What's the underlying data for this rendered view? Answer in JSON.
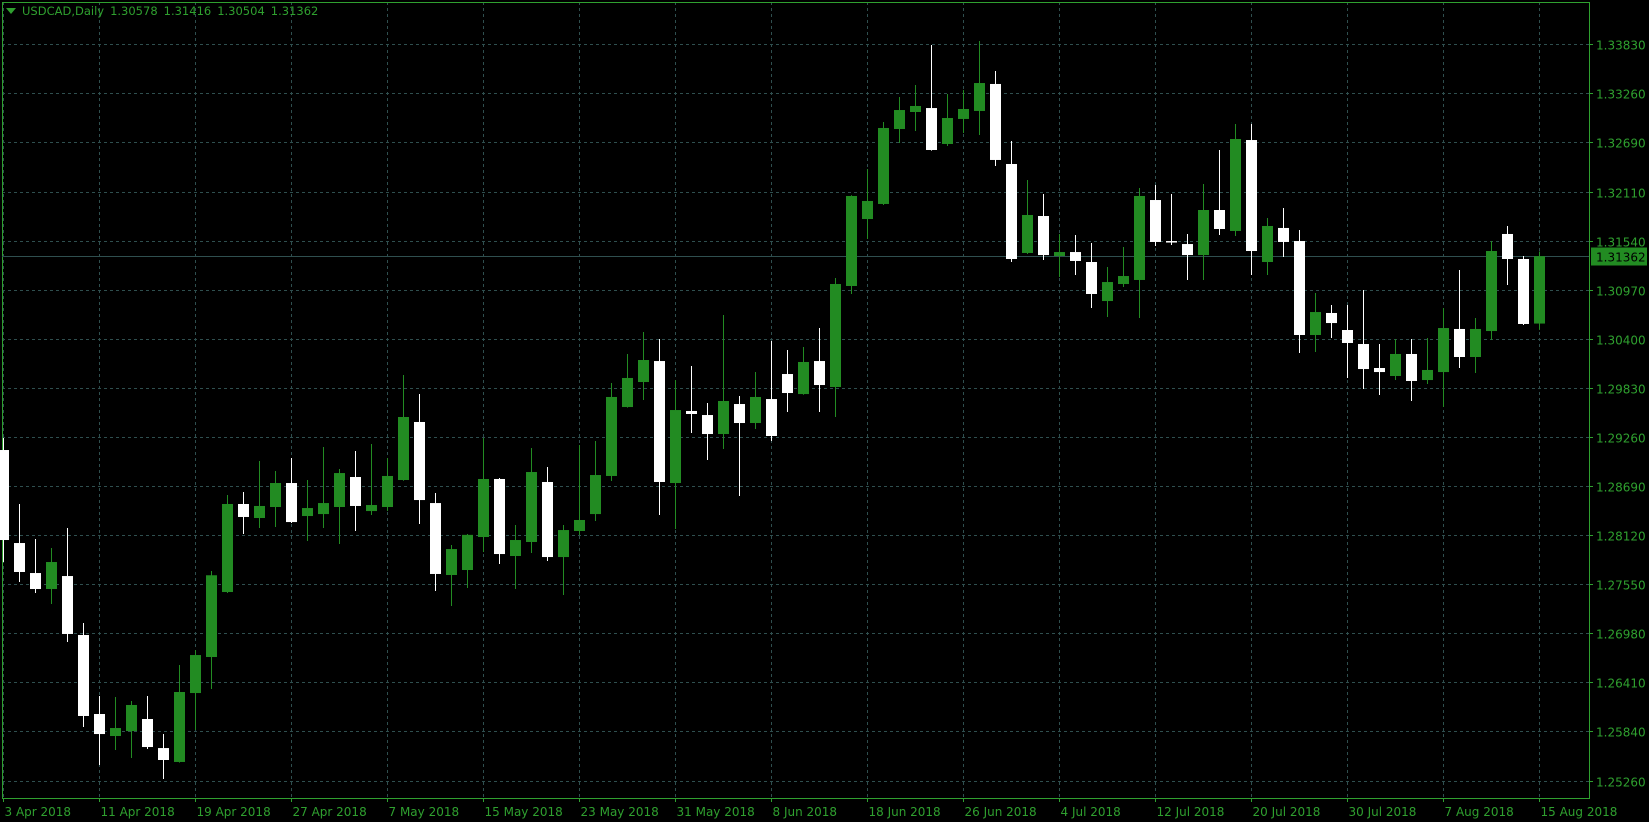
{
  "header": {
    "symbol_period": "USDCAD,Daily",
    "open": "1.30578",
    "high": "1.31416",
    "low": "1.30504",
    "close": "1.31362",
    "menu_icon": "triangle-down-icon"
  },
  "colors": {
    "background": "#000000",
    "bull_candle": "#228B22",
    "bear_candle": "#FFFFFF",
    "grid": "#2F4F4F",
    "axis_text": "#2FA02F",
    "border": "#2FA02F",
    "bid_line": "#2F4F4F"
  },
  "chart_data": {
    "type": "candlestick",
    "symbol": "USDCAD",
    "timeframe": "Daily",
    "grid": true,
    "ylim": [
      1.25,
      1.343
    ],
    "y_ticks": [
      "1.33830",
      "1.33260",
      "1.32690",
      "1.32110",
      "1.31540",
      "1.30970",
      "1.30400",
      "1.29830",
      "1.29260",
      "1.28690",
      "1.28120",
      "1.27550",
      "1.26980",
      "1.26410",
      "1.25840",
      "1.25260"
    ],
    "current_price": "1.31362",
    "x_labels": [
      {
        "label": "3 Apr 2018",
        "index": 0
      },
      {
        "label": "11 Apr 2018",
        "index": 6
      },
      {
        "label": "19 Apr 2018",
        "index": 12
      },
      {
        "label": "27 Apr 2018",
        "index": 18
      },
      {
        "label": "7 May 2018",
        "index": 24
      },
      {
        "label": "15 May 2018",
        "index": 30
      },
      {
        "label": "23 May 2018",
        "index": 36
      },
      {
        "label": "31 May 2018",
        "index": 42
      },
      {
        "label": "8 Jun 2018",
        "index": 48
      },
      {
        "label": "18 Jun 2018",
        "index": 54
      },
      {
        "label": "26 Jun 2018",
        "index": 60
      },
      {
        "label": "4 Jul 2018",
        "index": 66
      },
      {
        "label": "12 Jul 2018",
        "index": 72
      },
      {
        "label": "20 Jul 2018",
        "index": 78
      },
      {
        "label": "30 Jul 2018",
        "index": 84
      },
      {
        "label": "7 Aug 2018",
        "index": 90
      },
      {
        "label": "15 Aug 2018",
        "index": 96
      }
    ],
    "ohlc_fields": [
      "open",
      "high",
      "low",
      "close"
    ],
    "ohlc": [
      [
        1.29107,
        1.29247,
        1.27804,
        1.2806
      ],
      [
        1.28025,
        1.28479,
        1.27571,
        1.27688
      ],
      [
        1.27676,
        1.28072,
        1.27443,
        1.2749
      ],
      [
        1.2749,
        1.27967,
        1.27316,
        1.27804
      ],
      [
        1.27641,
        1.282,
        1.26873,
        1.26967
      ],
      [
        1.26955,
        1.27094,
        1.25885,
        1.26013
      ],
      [
        1.26036,
        1.26245,
        1.25443,
        1.25803
      ],
      [
        1.2578,
        1.26234,
        1.25617,
        1.25873
      ],
      [
        1.25838,
        1.26187,
        1.25524,
        1.26141
      ],
      [
        1.25978,
        1.26245,
        1.25629,
        1.25652
      ],
      [
        1.2564,
        1.25803,
        1.2528,
        1.25501
      ],
      [
        1.25478,
        1.26606,
        1.2547,
        1.26292
      ],
      [
        1.2628,
        1.2678,
        1.2585,
        1.26722
      ],
      [
        1.26699,
        1.277,
        1.26327,
        1.2765
      ],
      [
        1.27455,
        1.28584,
        1.27443,
        1.28479
      ],
      [
        1.28479,
        1.28618,
        1.2813,
        1.28328
      ],
      [
        1.28316,
        1.28979,
        1.282,
        1.28456
      ],
      [
        1.28444,
        1.28863,
        1.28211,
        1.28723
      ],
      [
        1.28723,
        1.29014,
        1.28258,
        1.28269
      ],
      [
        1.28339,
        1.28758,
        1.28048,
        1.28432
      ],
      [
        1.28362,
        1.29142,
        1.282,
        1.2849
      ],
      [
        1.28444,
        1.28886,
        1.28013,
        1.28839
      ],
      [
        1.28793,
        1.29095,
        1.28165,
        1.28456
      ],
      [
        1.28397,
        1.29177,
        1.28351,
        1.28467
      ],
      [
        1.28444,
        1.29014,
        1.28397,
        1.28805
      ],
      [
        1.28758,
        1.29979,
        1.2875,
        1.29491
      ],
      [
        1.29433,
        1.29758,
        1.28246,
        1.28525
      ],
      [
        1.2849,
        1.28607,
        1.27467,
        1.27665
      ],
      [
        1.27653,
        1.28002,
        1.27292,
        1.27955
      ],
      [
        1.27711,
        1.2813,
        1.27502,
        1.2812
      ],
      [
        1.28095,
        1.29247,
        1.2792,
        1.2877
      ],
      [
        1.2877,
        1.28781,
        1.27781,
        1.27897
      ],
      [
        1.27874,
        1.28234,
        1.2749,
        1.2806
      ],
      [
        1.28037,
        1.2913,
        1.27909,
        1.28851
      ],
      [
        1.28735,
        1.28909,
        1.27816,
        1.27862
      ],
      [
        1.27862,
        1.28234,
        1.2742,
        1.28176
      ],
      [
        1.28165,
        1.29165,
        1.28118,
        1.28293
      ],
      [
        1.28362,
        1.29212,
        1.28281,
        1.28816
      ],
      [
        1.28805,
        1.29886,
        1.28746,
        1.29724
      ],
      [
        1.29607,
        1.30224,
        1.296,
        1.29945
      ],
      [
        1.29898,
        1.3048,
        1.29689,
        1.30154
      ],
      [
        1.30142,
        1.30398,
        1.28351,
        1.28735
      ],
      [
        1.28723,
        1.29921,
        1.28188,
        1.29572
      ],
      [
        1.29561,
        1.30084,
        1.29305,
        1.29526
      ],
      [
        1.29514,
        1.29654,
        1.28991,
        1.29293
      ],
      [
        1.29293,
        1.30677,
        1.29119,
        1.29677
      ],
      [
        1.29642,
        1.29735,
        1.28572,
        1.29421
      ],
      [
        1.29421,
        1.30014,
        1.29351,
        1.29724
      ],
      [
        1.297,
        1.30375,
        1.29212,
        1.2927
      ],
      [
        1.29991,
        1.3027,
        1.29549,
        1.2977
      ],
      [
        1.29758,
        1.30305,
        1.2975,
        1.30131
      ],
      [
        1.30142,
        1.30526,
        1.29549,
        1.29863
      ],
      [
        1.2984,
        1.31108,
        1.29491,
        1.31038
      ],
      [
        1.31015,
        1.3207,
        1.30922,
        1.32062
      ],
      [
        1.31794,
        1.32376,
        1.31562,
        1.32004
      ],
      [
        1.31969,
        1.32923,
        1.31957,
        1.32853
      ],
      [
        1.32841,
        1.33213,
        1.32678,
        1.33062
      ],
      [
        1.33039,
        1.33353,
        1.32818,
        1.33109
      ],
      [
        1.33085,
        1.33818,
        1.3259,
        1.32597
      ],
      [
        1.32667,
        1.33248,
        1.32643,
        1.32969
      ],
      [
        1.32958,
        1.33295,
        1.32795,
        1.33074
      ],
      [
        1.33051,
        1.33865,
        1.32771,
        1.33376
      ],
      [
        1.33365,
        1.33516,
        1.32411,
        1.32481
      ],
      [
        1.32434,
        1.32702,
        1.31294,
        1.31329
      ],
      [
        1.31399,
        1.32248,
        1.31387,
        1.31841
      ],
      [
        1.31829,
        1.32085,
        1.31317,
        1.31375
      ],
      [
        1.31364,
        1.3162,
        1.31119,
        1.3141
      ],
      [
        1.3141,
        1.31608,
        1.31143,
        1.31306
      ],
      [
        1.31294,
        1.31515,
        1.30759,
        1.30922
      ],
      [
        1.3084,
        1.31236,
        1.30654,
        1.31061
      ],
      [
        1.31038,
        1.31469,
        1.31003,
        1.31131
      ],
      [
        1.31085,
        1.32155,
        1.30643,
        1.32062
      ],
      [
        1.32015,
        1.3219,
        1.3148,
        1.31527
      ],
      [
        1.31538,
        1.32085,
        1.31492,
        1.31527
      ],
      [
        1.31503,
        1.3162,
        1.31085,
        1.31375
      ],
      [
        1.31375,
        1.32201,
        1.31085,
        1.31899
      ],
      [
        1.31899,
        1.32597,
        1.31608,
        1.31678
      ],
      [
        1.31655,
        1.32899,
        1.31596,
        1.32725
      ],
      [
        1.32713,
        1.32899,
        1.31143,
        1.31422
      ],
      [
        1.31294,
        1.31806,
        1.31143,
        1.31713
      ],
      [
        1.3169,
        1.31922,
        1.31352,
        1.31527
      ],
      [
        1.31538,
        1.31666,
        1.30235,
        1.30445
      ],
      [
        1.30445,
        1.30933,
        1.30247,
        1.30712
      ],
      [
        1.30701,
        1.30794,
        1.3041,
        1.30584
      ],
      [
        1.30503,
        1.30794,
        1.29945,
        1.30352
      ],
      [
        1.3034,
        1.30968,
        1.29817,
        1.30049
      ],
      [
        1.30061,
        1.3034,
        1.29747,
        1.30014
      ],
      [
        1.29968,
        1.30398,
        1.29921,
        1.30224
      ],
      [
        1.30224,
        1.30398,
        1.29677,
        1.2991
      ],
      [
        1.29921,
        1.3041,
        1.29875,
        1.30038
      ],
      [
        1.30014,
        1.30759,
        1.29607,
        1.30526
      ],
      [
        1.30515,
        1.31201,
        1.30061,
        1.30189
      ],
      [
        1.30189,
        1.30643,
        1.30003,
        1.30515
      ],
      [
        1.30491,
        1.31538,
        1.30387,
        1.31422
      ],
      [
        1.3162,
        1.31713,
        1.31026,
        1.31329
      ],
      [
        1.31329,
        1.31364,
        1.30561,
        1.30573
      ],
      [
        1.30578,
        1.31416,
        1.30504,
        1.31362
      ]
    ]
  }
}
